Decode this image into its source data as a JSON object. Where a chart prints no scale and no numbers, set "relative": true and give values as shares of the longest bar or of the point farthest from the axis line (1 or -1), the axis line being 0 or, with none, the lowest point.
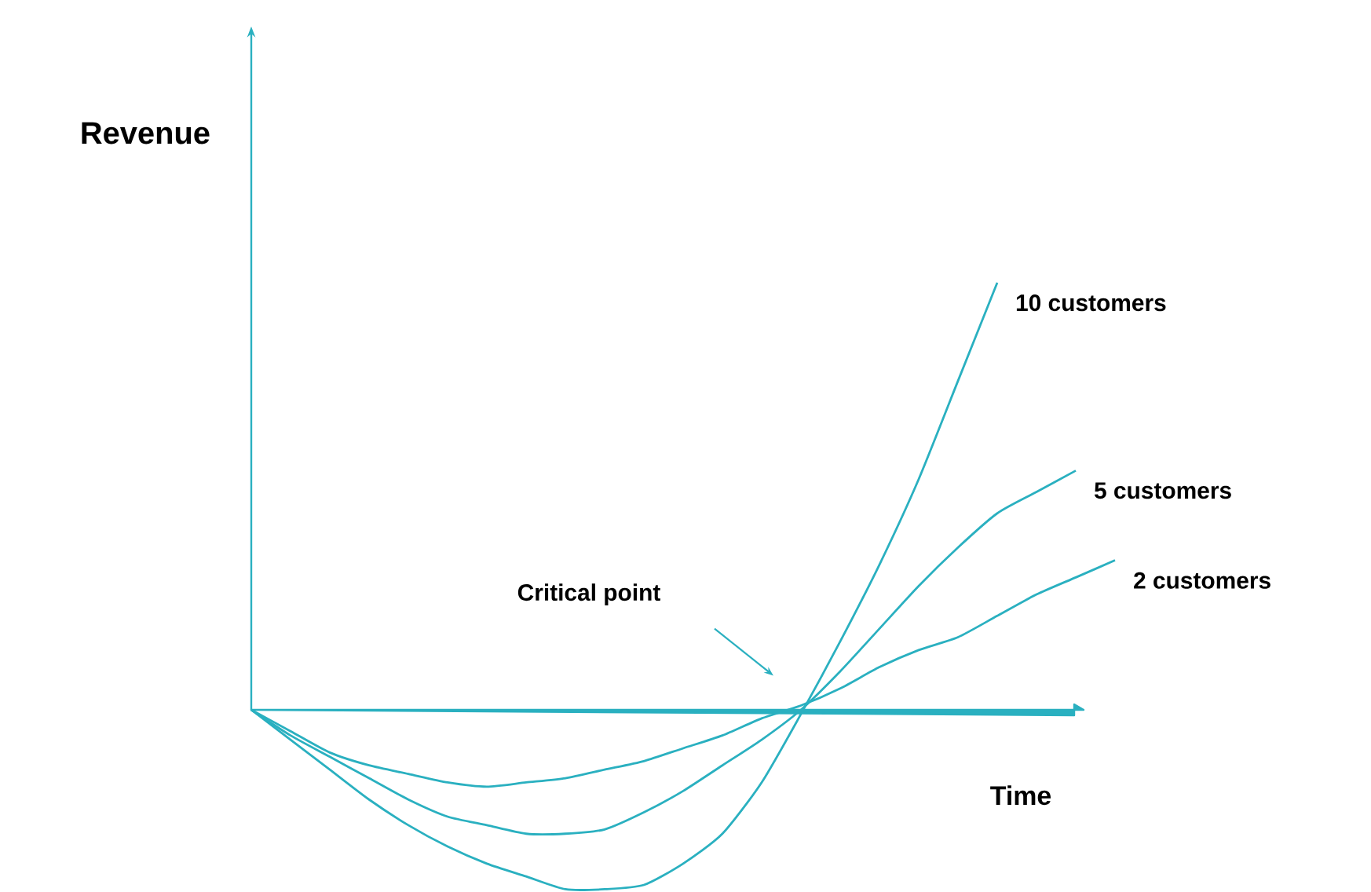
{
  "chart_data": {
    "type": "line",
    "relative": true,
    "xlabel": "Time",
    "ylabel": "Revenue",
    "annotations": [
      "Critical point"
    ],
    "ref_lines": [
      {
        "axis": "y",
        "value": 0,
        "color": "#2ab0c0"
      }
    ],
    "categories": [
      null,
      null,
      null,
      null,
      null,
      null,
      null,
      null,
      null,
      null,
      null,
      null,
      null,
      null,
      null,
      null,
      null,
      null,
      null,
      null,
      null,
      null,
      null
    ],
    "series": [
      {
        "name": "10 customers",
        "color": "#2ab0c0",
        "values": [
          0,
          -0.07,
          -0.14,
          -0.21,
          -0.27,
          -0.32,
          -0.36,
          -0.39,
          -0.42,
          -0.42,
          -0.41,
          -0.36,
          -0.29,
          -0.17,
          -0.01,
          0.16,
          0.34,
          0.54,
          0.77,
          1.0,
          null,
          null,
          null
        ]
      },
      {
        "name": "5 customers",
        "color": "#2ab0c0",
        "values": [
          0,
          -0.06,
          -0.11,
          -0.16,
          -0.21,
          -0.25,
          -0.27,
          -0.29,
          -0.29,
          -0.28,
          -0.24,
          -0.19,
          -0.13,
          -0.07,
          0,
          0.09,
          0.19,
          0.29,
          0.38,
          0.46,
          0.51,
          0.56,
          null
        ]
      },
      {
        "name": "2 customers",
        "color": "#2ab0c0",
        "values": [
          0,
          -0.05,
          -0.1,
          -0.13,
          -0.15,
          -0.17,
          -0.18,
          -0.17,
          -0.16,
          -0.14,
          -0.12,
          -0.09,
          -0.06,
          -0.02,
          0.01,
          0.05,
          0.1,
          0.14,
          0.17,
          0.22,
          0.27,
          0.31,
          0.35
        ]
      }
    ]
  }
}
